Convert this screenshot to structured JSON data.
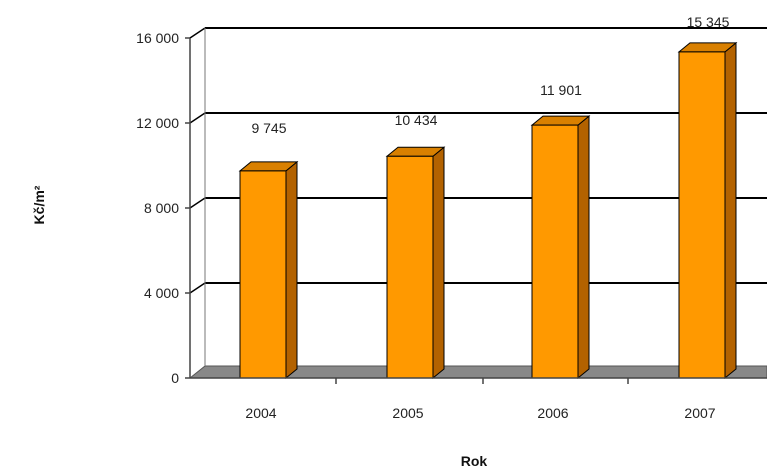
{
  "chart_data": {
    "type": "bar",
    "categories": [
      "2004",
      "2005",
      "2006",
      "2007"
    ],
    "values": [
      9745,
      10434,
      11901,
      15345
    ],
    "value_labels": [
      "9 745",
      "10 434",
      "11 901",
      "15 345"
    ],
    "xlabel": "Rok",
    "ylabel": "Kč/m²",
    "ylim": [
      0,
      16000
    ],
    "yticks": [
      0,
      4000,
      8000,
      12000,
      16000
    ],
    "ytick_labels": [
      "0",
      "4 000",
      "8 000",
      "12 000",
      "16 000"
    ],
    "grid": true,
    "style": "3d-bar",
    "colors": {
      "bar_front": "#ff9900",
      "bar_side": "#b36200",
      "bar_top": "#d98000",
      "floor": "#888888",
      "grid": "#000000"
    }
  }
}
